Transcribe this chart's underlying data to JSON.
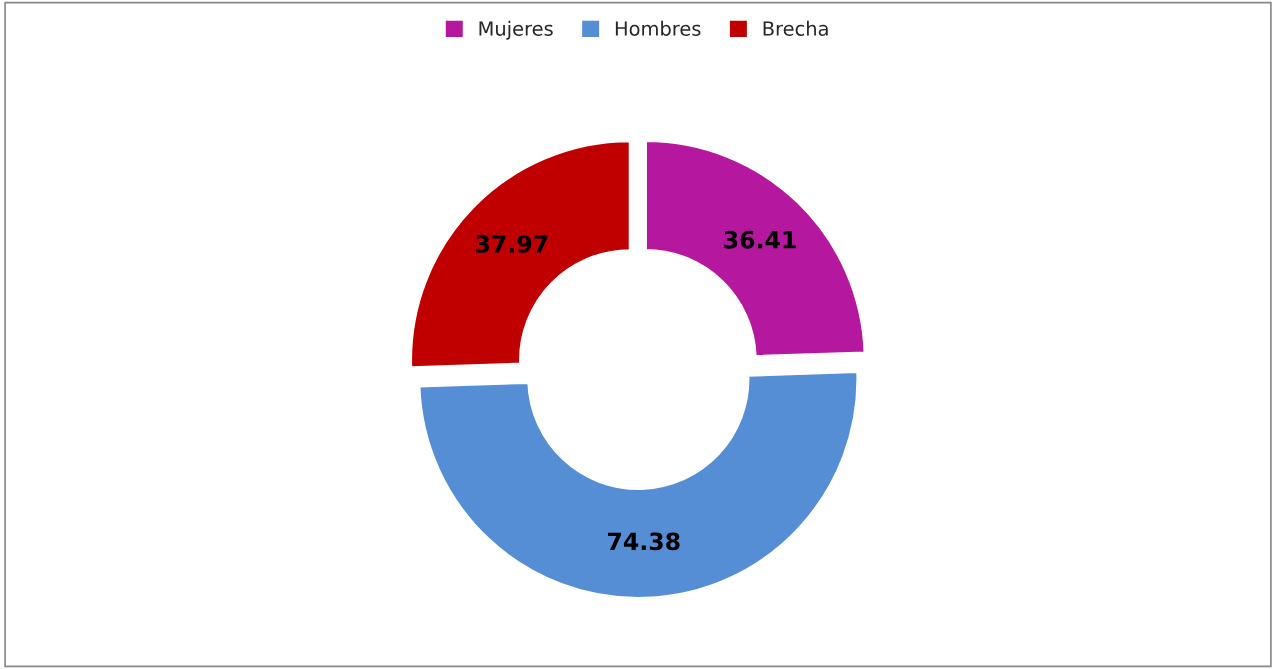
{
  "chart_data": {
    "type": "donut",
    "categories": [
      "Mujeres",
      "Hombres",
      "Brecha"
    ],
    "values": [
      36.41,
      74.38,
      37.97
    ],
    "colors": [
      "#b5179e",
      "#558ed5",
      "#c00000"
    ],
    "data_labels": true,
    "legend": "top"
  }
}
